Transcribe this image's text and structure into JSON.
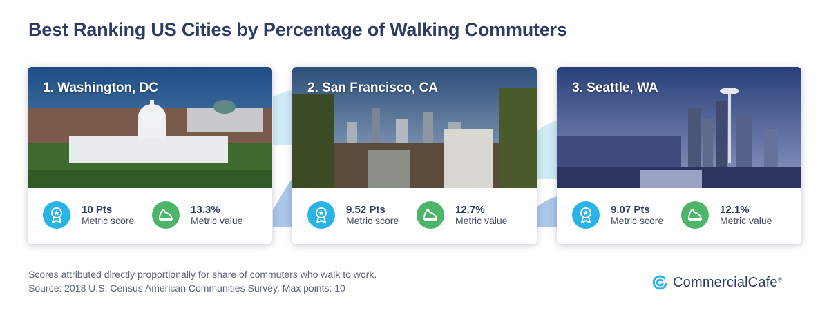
{
  "page": {
    "title": "Best Ranking US Cities by Percentage of Walking Commuters"
  },
  "cards": [
    {
      "title": "1. Washington, DC",
      "score": "10 Pts",
      "score_label": "Metric score",
      "value": "13.3%",
      "value_label": "Metric value"
    },
    {
      "title": "2. San Francisco, CA",
      "score": "9.52 Pts",
      "score_label": "Metric score",
      "value": "12.7%",
      "value_label": "Metric value"
    },
    {
      "title": "3. Seattle, WA",
      "score": "9.07 Pts",
      "score_label": "Metric score",
      "value": "12.1%",
      "value_label": "Metric value"
    }
  ],
  "icons": {
    "score": "award-ribbon-icon",
    "value": "sneaker-icon"
  },
  "footnote": {
    "line1": "Scores attributed directly proportionally for share of commuters who walk to work.",
    "line2": "Source: 2018 U.S. Census American Communities Survey. Max points: 10"
  },
  "brand": {
    "name": "CommercialCafe",
    "reg": "®"
  },
  "colors": {
    "title": "#2c3c63",
    "score_icon": "#2ab3e6",
    "value_icon": "#4db56a",
    "wave": "#bfe3f4",
    "wave_dark": "#8cb6e2"
  }
}
